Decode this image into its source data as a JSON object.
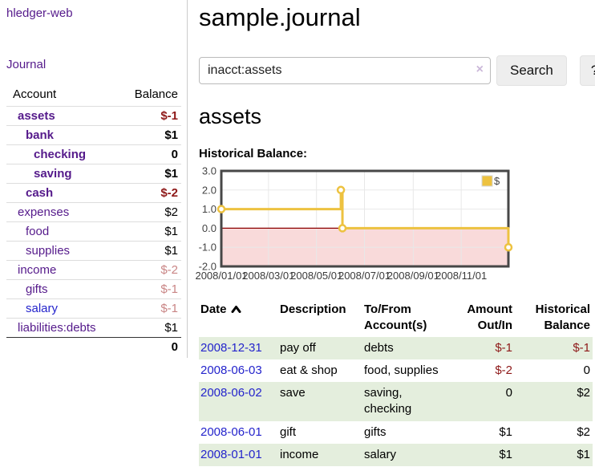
{
  "app": {
    "brand_link": "hledger-web"
  },
  "sidebar": {
    "journal_link": "Journal",
    "accounts": {
      "headers": [
        "Account",
        "Balance"
      ],
      "rows": [
        {
          "name": "assets",
          "indent": 1,
          "name_style": "acct-bold",
          "balance": "$-1",
          "bal_style": "neg-strong"
        },
        {
          "name": "bank",
          "indent": 2,
          "name_style": "acct-bold",
          "balance": "$1",
          "bal_style": "pos-bold"
        },
        {
          "name": "checking",
          "indent": 3,
          "name_style": "acct-bold",
          "balance": "0",
          "bal_style": "pos-bold"
        },
        {
          "name": "saving",
          "indent": 3,
          "name_style": "acct-bold",
          "balance": "$1",
          "bal_style": "pos-bold"
        },
        {
          "name": "cash",
          "indent": 2,
          "name_style": "acct-bold",
          "balance": "$-2",
          "bal_style": "neg-strong"
        },
        {
          "name": "expenses",
          "indent": 1,
          "name_style": "acct",
          "balance": "$2",
          "bal_style": "pos"
        },
        {
          "name": "food",
          "indent": 2,
          "name_style": "acct",
          "balance": "$1",
          "bal_style": "pos"
        },
        {
          "name": "supplies",
          "indent": 2,
          "name_style": "acct",
          "balance": "$1",
          "bal_style": "pos"
        },
        {
          "name": "income",
          "indent": 1,
          "name_style": "acct",
          "balance": "$-2",
          "bal_style": "neg-soft"
        },
        {
          "name": "gifts",
          "indent": 2,
          "name_style": "acct",
          "balance": "$-1",
          "bal_style": "neg-soft"
        },
        {
          "name": "salary",
          "indent": 2,
          "name_style": "acct-blue",
          "balance": "$-1",
          "bal_style": "neg-soft"
        },
        {
          "name": "liabilities:debts",
          "indent": 1,
          "name_style": "acct",
          "balance": "$1",
          "bal_style": "pos"
        }
      ],
      "total": "0"
    }
  },
  "header": {
    "title": "sample.journal"
  },
  "search": {
    "value": "inacct:assets",
    "clear_label": "×",
    "button": "Search",
    "help": "?"
  },
  "account_view": {
    "heading": "assets",
    "chart_title": "Historical Balance:"
  },
  "chart_data": {
    "type": "line",
    "style": "step-after",
    "title": "Historical Balance",
    "series": [
      {
        "name": "$",
        "color": "#edc240",
        "points": [
          [
            "2008-01-01",
            1
          ],
          [
            "2008-06-01",
            2
          ],
          [
            "2008-06-03",
            0
          ],
          [
            "2008-12-31",
            -1
          ]
        ]
      }
    ],
    "x_ticks": [
      "2008/01/01",
      "2008/03/01",
      "2008/05/01",
      "2008/07/01",
      "2008/09/01",
      "2008/11/01"
    ],
    "xlim": [
      "2008-01-01",
      "2008-12-31"
    ],
    "y_ticks": [
      3.0,
      2.0,
      1.0,
      0.0,
      -1.0,
      -2.0
    ],
    "ylim": [
      -2,
      3
    ],
    "grid": true,
    "negative_region_fill": "#f9dada",
    "zero_line_color": "#8b0000",
    "legend": {
      "label": "$",
      "swatch_color": "#edc240",
      "position": "top-right"
    }
  },
  "register": {
    "headers": [
      {
        "label": "Date",
        "sort": "asc"
      },
      {
        "label": "Description"
      },
      {
        "label": "To/From Account(s)"
      },
      {
        "label": "Amount Out/In"
      },
      {
        "label": "Historical Balance"
      }
    ],
    "rows": [
      {
        "date": "2008-12-31",
        "description": "pay off",
        "accounts": "debts",
        "amount": "$-1",
        "amount_style": "neg",
        "balance": "$-1",
        "balance_style": "neg",
        "shaded": true
      },
      {
        "date": "2008-06-03",
        "description": "eat & shop",
        "accounts": "food, supplies",
        "amount": "$-2",
        "amount_style": "neg",
        "balance": "0",
        "balance_style": "pos",
        "shaded": false
      },
      {
        "date": "2008-06-02",
        "description": "save",
        "accounts": "saving, checking",
        "amount": "0",
        "amount_style": "pos",
        "balance": "$2",
        "balance_style": "pos",
        "shaded": true
      },
      {
        "date": "2008-06-01",
        "description": "gift",
        "accounts": "gifts",
        "amount": "$1",
        "amount_style": "pos",
        "balance": "$2",
        "balance_style": "pos",
        "shaded": false
      },
      {
        "date": "2008-01-01",
        "description": "income",
        "accounts": "salary",
        "amount": "$1",
        "amount_style": "pos",
        "balance": "$1",
        "balance_style": "pos",
        "shaded": true
      }
    ]
  }
}
